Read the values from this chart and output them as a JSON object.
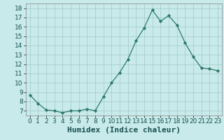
{
  "x": [
    0,
    1,
    2,
    3,
    4,
    5,
    6,
    7,
    8,
    9,
    10,
    11,
    12,
    13,
    14,
    15,
    16,
    17,
    18,
    19,
    20,
    21,
    22,
    23
  ],
  "y": [
    8.7,
    7.8,
    7.1,
    7.0,
    6.8,
    7.0,
    7.0,
    7.2,
    7.0,
    8.5,
    10.0,
    11.1,
    12.5,
    14.5,
    15.9,
    17.8,
    16.6,
    17.2,
    16.2,
    14.3,
    12.8,
    11.6,
    11.5,
    11.3
  ],
  "xlabel": "Humidex (Indice chaleur)",
  "ylim": [
    6.5,
    18.5
  ],
  "xlim": [
    -0.5,
    23.5
  ],
  "yticks": [
    7,
    8,
    9,
    10,
    11,
    12,
    13,
    14,
    15,
    16,
    17,
    18
  ],
  "xtick_labels": [
    "0",
    "1",
    "2",
    "3",
    "4",
    "5",
    "6",
    "7",
    "8",
    "9",
    "10",
    "11",
    "12",
    "13",
    "14",
    "15",
    "16",
    "17",
    "18",
    "19",
    "20",
    "21",
    "22",
    "23"
  ],
  "line_color": "#2d7a6a",
  "marker_color": "#2d7a6a",
  "bg_color": "#c8eaea",
  "grid_color": "#a0c8c8",
  "xlabel_fontsize": 8,
  "tick_fontsize": 6.5
}
